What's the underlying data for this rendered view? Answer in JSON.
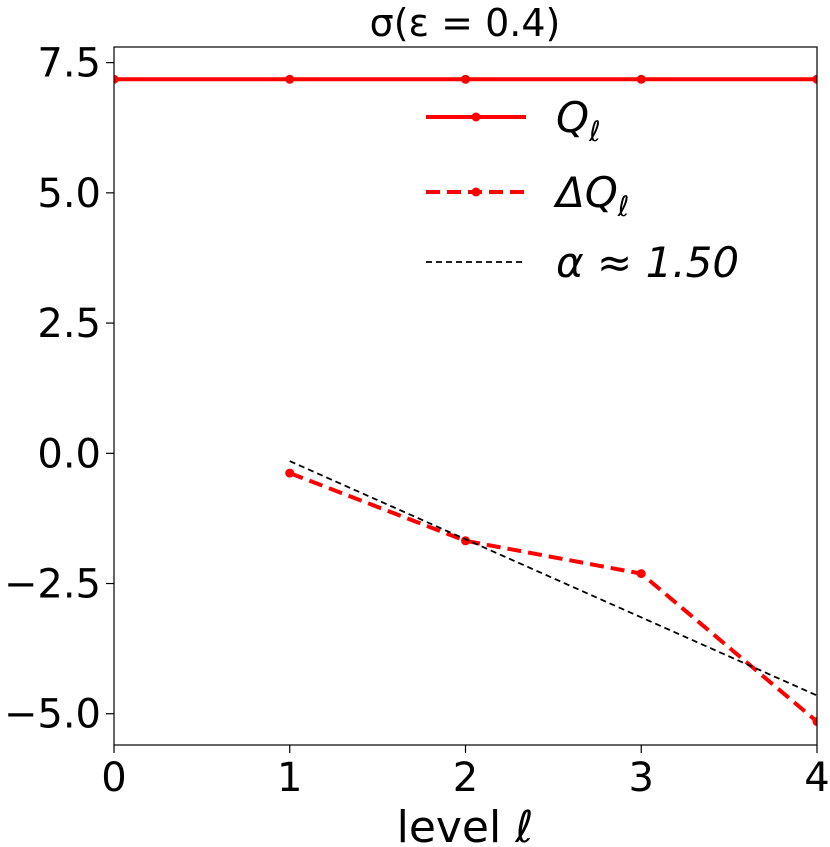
{
  "chart_data": {
    "type": "line",
    "title": "σ(ε = 0.4)",
    "xlabel": "level ℓ",
    "ylabel": "",
    "xlim": [
      0,
      4
    ],
    "ylim": [
      -5.6,
      7.8
    ],
    "xticks": [
      0,
      1,
      2,
      3,
      4
    ],
    "xtick_labels": [
      "0",
      "1",
      "2",
      "3",
      "4"
    ],
    "yticks": [
      -5.0,
      -2.5,
      0.0,
      2.5,
      5.0,
      7.5
    ],
    "ytick_labels": [
      "−5.0",
      "−2.5",
      "0.0",
      "2.5",
      "5.0",
      "7.5"
    ],
    "grid": false,
    "legend_position": "upper-right",
    "series": [
      {
        "name": "Q_ℓ",
        "legend_main": "Q",
        "legend_sub": "ℓ",
        "style": "solid-marker",
        "color": "#ff0000",
        "x": [
          0,
          1,
          2,
          3,
          4
        ],
        "values": [
          7.18,
          7.18,
          7.18,
          7.18,
          7.18
        ]
      },
      {
        "name": "ΔQ_ℓ",
        "legend_main": "ΔQ",
        "legend_sub": "ℓ",
        "style": "dashed-marker",
        "color": "#ff0000",
        "x": [
          1,
          2,
          3,
          4
        ],
        "values": [
          -0.38,
          -1.68,
          -2.31,
          -5.15
        ]
      },
      {
        "name": "α ≈ 1.50",
        "legend_main": "α ≈ 1.50",
        "legend_sub": "",
        "style": "dashed-thin",
        "color": "#000000",
        "x": [
          1,
          4
        ],
        "values": [
          -0.15,
          -4.65
        ]
      }
    ]
  }
}
